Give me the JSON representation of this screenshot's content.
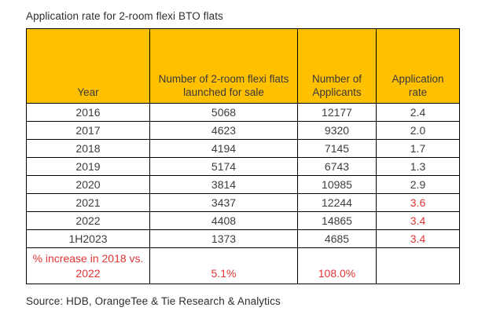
{
  "title": "Application rate for 2-room flexi BTO flats",
  "source": "Source: HDB, OrangeTee & Tie Research & Analytics",
  "colors": {
    "header_bg": "#FFC000",
    "border": "#000000",
    "highlight_red": "#E03535",
    "text": "#3d3d3d"
  },
  "chart_data": {
    "type": "table",
    "title": "Application rate for 2-room flexi BTO flats",
    "columns": [
      "Year",
      "Number of 2-room flexi flats launched for sale",
      "Number of Applicants",
      "Application rate"
    ],
    "rows": [
      {
        "cells": [
          "2016",
          "5068",
          "12177",
          "2.4"
        ],
        "rate_red": false
      },
      {
        "cells": [
          "2017",
          "4623",
          "9320",
          "2.0"
        ],
        "rate_red": false
      },
      {
        "cells": [
          "2018",
          "4194",
          "7145",
          "1.7"
        ],
        "rate_red": false
      },
      {
        "cells": [
          "2019",
          "5174",
          "6743",
          "1.3"
        ],
        "rate_red": false
      },
      {
        "cells": [
          "2020",
          "3814",
          "10985",
          "2.9"
        ],
        "rate_red": false
      },
      {
        "cells": [
          "2021",
          "3437",
          "12244",
          "3.6"
        ],
        "rate_red": true
      },
      {
        "cells": [
          "2022",
          "4408",
          "14865",
          "3.4"
        ],
        "rate_red": true
      },
      {
        "cells": [
          "1H2023",
          "1373",
          "4685",
          "3.4"
        ],
        "rate_red": true
      }
    ],
    "summary_row": {
      "cells": [
        "% increase in 2018 vs. 2022",
        "5.1%",
        "108.0%",
        ""
      ],
      "red": true
    }
  }
}
